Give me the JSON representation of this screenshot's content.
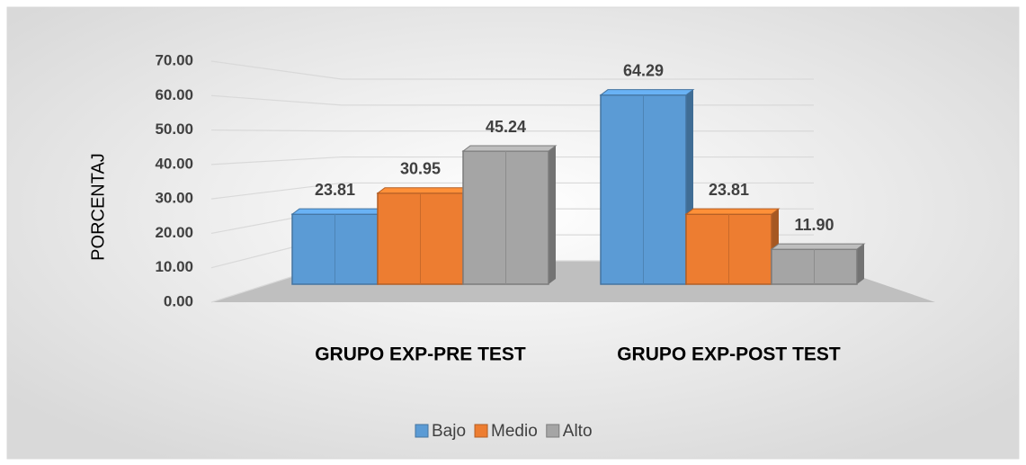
{
  "chart_data": {
    "type": "bar3d",
    "y_axis_label": "PORCENTAJ",
    "categories": [
      "GRUPO EXP-PRE TEST",
      "GRUPO EXP-POST TEST"
    ],
    "series": [
      {
        "name": "Bajo",
        "color": "#5b9bd5",
        "values": [
          23.81,
          64.29
        ],
        "value_labels": [
          "23.81",
          "64.29"
        ]
      },
      {
        "name": "Medio",
        "color": "#ed7d31",
        "values": [
          30.95,
          23.81
        ],
        "value_labels": [
          "30.95",
          "23.81"
        ]
      },
      {
        "name": "Alto",
        "color": "#a5a5a5",
        "values": [
          45.24,
          11.9
        ],
        "value_labels": [
          "45.24",
          "11.90"
        ]
      }
    ],
    "ylim": [
      0,
      70
    ],
    "yticks": [
      {
        "value": 0,
        "label": "0.00"
      },
      {
        "value": 10,
        "label": "10.00"
      },
      {
        "value": 20,
        "label": "20.00"
      },
      {
        "value": 30,
        "label": "30.00"
      },
      {
        "value": 40,
        "label": "40.00"
      },
      {
        "value": 50,
        "label": "50.00"
      },
      {
        "value": 60,
        "label": "60.00"
      },
      {
        "value": 70,
        "label": "70.00"
      }
    ],
    "grid": true,
    "legend": "bottom"
  }
}
